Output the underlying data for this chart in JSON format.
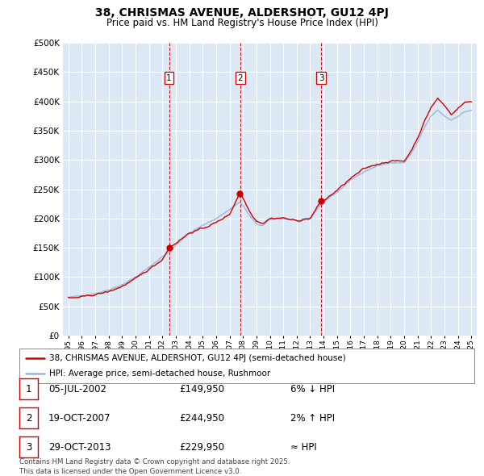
{
  "title": "38, CHRISMAS AVENUE, ALDERSHOT, GU12 4PJ",
  "subtitle": "Price paid vs. HM Land Registry's House Price Index (HPI)",
  "hpi_color": "#9ab8d8",
  "price_color": "#cc0000",
  "vline_color": "#cc0000",
  "dot_color": "#cc0000",
  "background_color": "#ffffff",
  "plot_bg_color": "#dce9f5",
  "grid_color": "#ffffff",
  "ylim": [
    0,
    500000
  ],
  "yticks": [
    0,
    50000,
    100000,
    150000,
    200000,
    250000,
    300000,
    350000,
    400000,
    450000,
    500000
  ],
  "transactions": [
    {
      "date_num": 2002.5,
      "price": 149950,
      "label": "1"
    },
    {
      "date_num": 2007.79,
      "price": 244950,
      "label": "2"
    },
    {
      "date_num": 2013.83,
      "price": 229950,
      "label": "3"
    }
  ],
  "transaction_labels": [
    {
      "num": "1",
      "date": "05-JUL-2002",
      "price": "£149,950",
      "hpi_rel": "6% ↓ HPI"
    },
    {
      "num": "2",
      "date": "19-OCT-2007",
      "price": "£244,950",
      "hpi_rel": "2% ↑ HPI"
    },
    {
      "num": "3",
      "date": "29-OCT-2013",
      "price": "£229,950",
      "hpi_rel": "≈ HPI"
    }
  ],
  "legend_entries": [
    "38, CHRISMAS AVENUE, ALDERSHOT, GU12 4PJ (semi-detached house)",
    "HPI: Average price, semi-detached house, Rushmoor"
  ],
  "footer": "Contains HM Land Registry data © Crown copyright and database right 2025.\nThis data is licensed under the Open Government Licence v3.0."
}
